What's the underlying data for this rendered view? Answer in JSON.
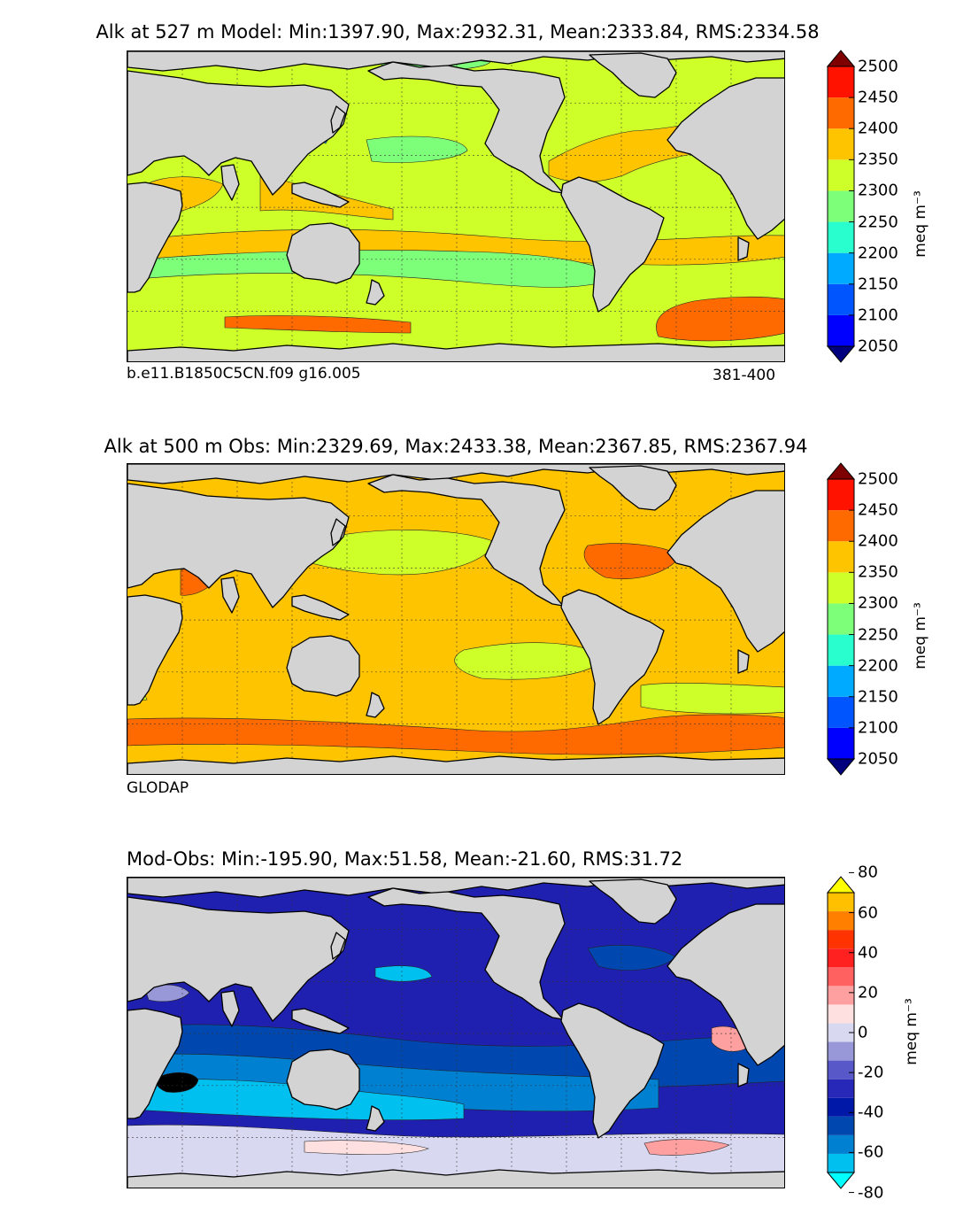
{
  "chart_data": [
    {
      "type": "heatmap",
      "title": "Alk at 527 m Model: Min:1397.90, Max:2932.31, Mean:2333.84, RMS:2334.58",
      "left_label": "b.e11.B1850C5CN.f09 g16.005",
      "right_label": "381-400",
      "colorbar_label": "meq m⁻³",
      "colorbar_levels": [
        2000,
        2050,
        2100,
        2150,
        2200,
        2250,
        2300,
        2350,
        2400,
        2450,
        2500,
        2550
      ],
      "colorbar_ticks": [
        "2050",
        "2100",
        "2150",
        "2200",
        "2250",
        "2300",
        "2350",
        "2400",
        "2450",
        "2500"
      ],
      "colors": [
        "#00007f",
        "#0000ff",
        "#0055ff",
        "#00aaff",
        "#29ffce",
        "#7dff7a",
        "#ceff29",
        "#ffc400",
        "#ff6a00",
        "#ff1300",
        "#7f0000"
      ],
      "ocean_base": "#ceff29"
    },
    {
      "type": "heatmap",
      "title": "Alk at 500 m Obs: Min:2329.69, Max:2433.38, Mean:2367.85, RMS:2367.94",
      "left_label": "GLODAP",
      "right_label": "",
      "colorbar_label": "meq m⁻³",
      "colorbar_levels": [
        2000,
        2050,
        2100,
        2150,
        2200,
        2250,
        2300,
        2350,
        2400,
        2450,
        2500,
        2550
      ],
      "colorbar_ticks": [
        "2050",
        "2100",
        "2150",
        "2200",
        "2250",
        "2300",
        "2350",
        "2400",
        "2450",
        "2500"
      ],
      "colors": [
        "#00007f",
        "#0000ff",
        "#0055ff",
        "#00aaff",
        "#29ffce",
        "#7dff7a",
        "#ceff29",
        "#ffc400",
        "#ff6a00",
        "#ff1300",
        "#7f0000"
      ],
      "ocean_base": "#ffc400"
    },
    {
      "type": "heatmap",
      "title": "Mod-Obs: Min:-195.90, Max:51.58, Mean:-21.60, RMS:31.72",
      "colorbar_label": "meq m⁻³",
      "colorbar_levels": [
        -80,
        -70,
        -60,
        -50,
        -40,
        -30,
        -20,
        -10,
        0,
        10,
        20,
        30,
        40,
        50,
        60,
        70,
        80
      ],
      "colorbar_ticks": [
        "-80",
        "-60",
        "-40",
        "-20",
        "0",
        "20",
        "40",
        "60",
        "80"
      ],
      "colors": [
        "#00ffff",
        "#00c0f0",
        "#0080d0",
        "#0048b0",
        "#0018a8",
        "#2828b8",
        "#5858c8",
        "#9898d8",
        "#d8d8f0",
        "#ffe0e0",
        "#ffa0a0",
        "#ff6060",
        "#ff2020",
        "#ff3300",
        "#ff8000",
        "#ffc000",
        "#ffff00"
      ],
      "ocean_base": "#2020b0"
    }
  ]
}
